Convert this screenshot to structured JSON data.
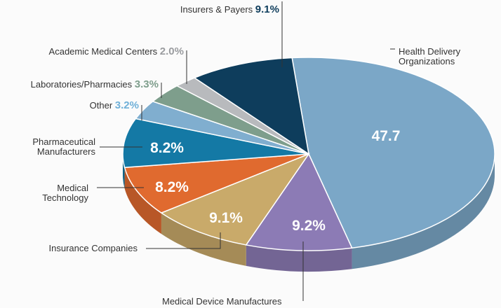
{
  "chart_data": {
    "type": "pie",
    "categories": [
      "Health Delivery Organizations",
      "Medical Device Manufactures",
      "Insurance Companies",
      "Medical Technology",
      "Pharmaceutical Manufacturers",
      "Other",
      "Laboratories/Pharmacies",
      "Academic Medical Centers",
      "Insurers & Payers"
    ],
    "values": [
      47.7,
      9.2,
      9.1,
      8.2,
      8.2,
      3.2,
      3.3,
      2.0,
      9.1
    ],
    "value_labels": [
      "47.7",
      "9.2%",
      "9.1%",
      "8.2%",
      "8.2%",
      "3.2%",
      "3.3%",
      "2.0%",
      "9.1%"
    ],
    "colors": [
      "#7ba7c7",
      "#8c7bb5",
      "#c9aa6a",
      "#e06a2f",
      "#1479a5",
      "#80aecf",
      "#7e9e8c",
      "#b8babd",
      "#0e3d5c"
    ]
  }
}
